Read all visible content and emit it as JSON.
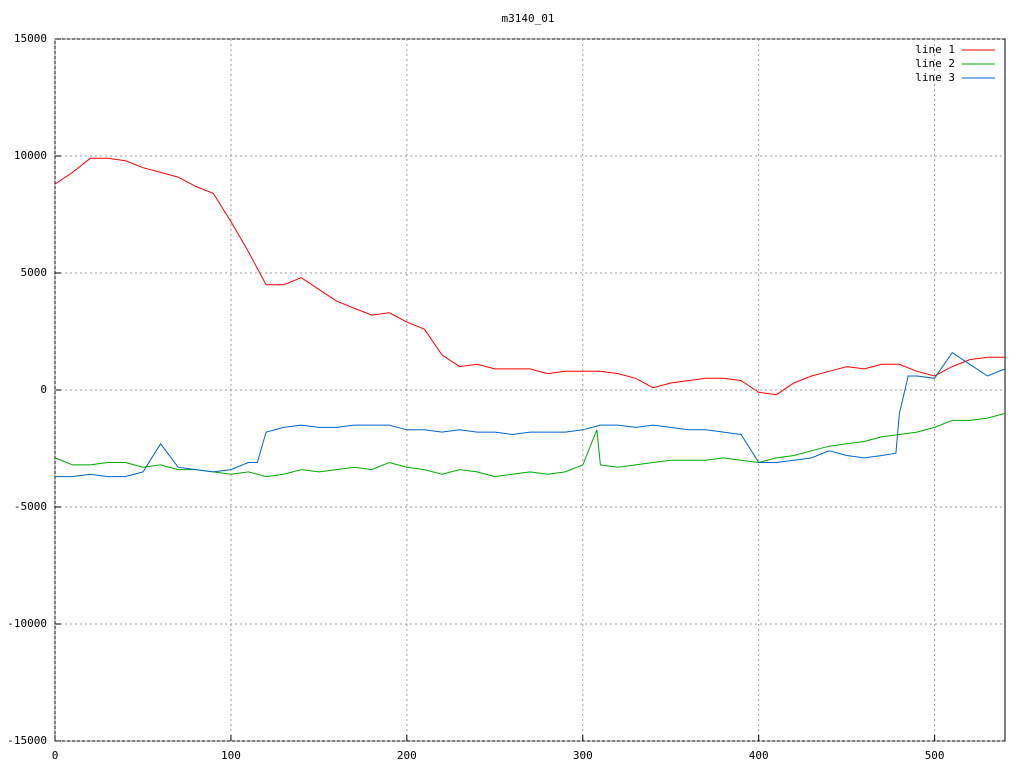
{
  "chart_data": {
    "type": "line",
    "title": "m3140_01",
    "xlim": [
      0,
      540
    ],
    "xticks": [
      0,
      100,
      200,
      300,
      400,
      500
    ],
    "ylim": [
      -15000,
      15000
    ],
    "yticks": [
      -15000,
      -10000,
      -5000,
      0,
      5000,
      10000,
      15000
    ],
    "grid": true,
    "legend": "top-right",
    "series": [
      {
        "name": "line 1",
        "color": "#ff0000",
        "x": [
          0,
          10,
          20,
          30,
          40,
          50,
          60,
          70,
          80,
          90,
          100,
          110,
          120,
          130,
          140,
          150,
          160,
          170,
          180,
          190,
          200,
          210,
          220,
          230,
          240,
          250,
          260,
          270,
          280,
          290,
          300,
          310,
          320,
          330,
          340,
          350,
          360,
          370,
          380,
          390,
          400,
          410,
          420,
          430,
          440,
          450,
          460,
          470,
          480,
          490,
          500,
          510,
          520,
          530,
          540
        ],
        "values": [
          8800,
          9300,
          9900,
          9900,
          9800,
          9500,
          9300,
          9100,
          8700,
          8400,
          7200,
          5900,
          4500,
          4500,
          4800,
          4300,
          3800,
          3500,
          3200,
          3300,
          2900,
          2600,
          1500,
          1000,
          1100,
          900,
          900,
          900,
          700,
          800,
          800,
          800,
          700,
          500,
          100,
          300,
          400,
          500,
          500,
          400,
          -100,
          -200,
          300,
          600,
          800,
          1000,
          900,
          1100,
          1100,
          800,
          600,
          1000,
          1300,
          1400,
          1400
        ]
      },
      {
        "name": "line 2",
        "color": "#00aa00",
        "x": [
          0,
          10,
          20,
          30,
          40,
          50,
          60,
          70,
          80,
          90,
          100,
          110,
          120,
          130,
          140,
          150,
          160,
          170,
          180,
          190,
          200,
          210,
          220,
          230,
          240,
          250,
          260,
          270,
          280,
          290,
          300,
          308,
          310,
          320,
          330,
          340,
          350,
          360,
          370,
          380,
          390,
          400,
          410,
          420,
          430,
          440,
          450,
          460,
          470,
          480,
          490,
          500,
          510,
          520,
          530,
          540
        ],
        "values": [
          -2900,
          -3200,
          -3200,
          -3100,
          -3100,
          -3300,
          -3200,
          -3400,
          -3400,
          -3500,
          -3600,
          -3500,
          -3700,
          -3600,
          -3400,
          -3500,
          -3400,
          -3300,
          -3400,
          -3100,
          -3300,
          -3400,
          -3600,
          -3400,
          -3500,
          -3700,
          -3600,
          -3500,
          -3600,
          -3500,
          -3200,
          -1700,
          -3200,
          -3300,
          -3200,
          -3100,
          -3000,
          -3000,
          -3000,
          -2900,
          -3000,
          -3100,
          -2900,
          -2800,
          -2600,
          -2400,
          -2300,
          -2200,
          -2000,
          -1900,
          -1800,
          -1600,
          -1300,
          -1300,
          -1200,
          -1000
        ]
      },
      {
        "name": "line 3",
        "color": "#0066cc",
        "x": [
          0,
          10,
          20,
          30,
          40,
          50,
          60,
          70,
          80,
          90,
          100,
          110,
          115,
          120,
          130,
          140,
          150,
          160,
          170,
          180,
          190,
          200,
          210,
          220,
          230,
          240,
          250,
          260,
          270,
          280,
          290,
          300,
          310,
          320,
          330,
          340,
          350,
          360,
          370,
          380,
          390,
          400,
          410,
          420,
          430,
          440,
          450,
          460,
          470,
          478,
          480,
          485,
          490,
          500,
          510,
          520,
          530,
          540
        ],
        "values": [
          -3700,
          -3700,
          -3600,
          -3700,
          -3700,
          -3500,
          -2300,
          -3300,
          -3400,
          -3500,
          -3400,
          -3100,
          -3100,
          -1800,
          -1600,
          -1500,
          -1600,
          -1600,
          -1500,
          -1500,
          -1500,
          -1700,
          -1700,
          -1800,
          -1700,
          -1800,
          -1800,
          -1900,
          -1800,
          -1800,
          -1800,
          -1700,
          -1500,
          -1500,
          -1600,
          -1500,
          -1600,
          -1700,
          -1700,
          -1800,
          -1900,
          -3100,
          -3100,
          -3000,
          -2900,
          -2600,
          -2800,
          -2900,
          -2800,
          -2700,
          -1000,
          600,
          600,
          500,
          1600,
          1100,
          600,
          900
        ]
      }
    ]
  }
}
